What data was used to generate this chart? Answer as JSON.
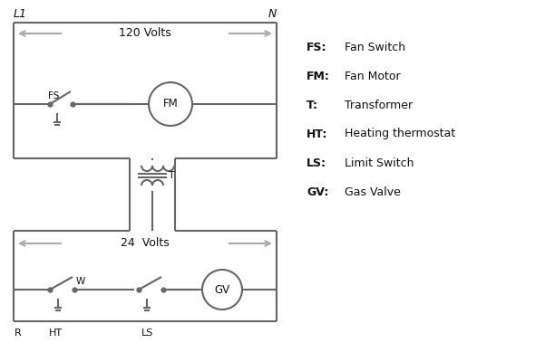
{
  "background_color": "#ffffff",
  "line_color": "#666666",
  "text_color": "#111111",
  "legend_items": [
    [
      "FS:",
      "Fan Switch"
    ],
    [
      "FM:",
      "Fan Motor"
    ],
    [
      "T:",
      "Transformer"
    ],
    [
      "HT:",
      "Heating thermostat"
    ],
    [
      "LS:",
      "Limit Switch"
    ],
    [
      "GV:",
      "Gas Valve"
    ]
  ],
  "volts_120": "120 Volts",
  "volts_24": "24  Volts",
  "L1_label": "L1",
  "N_label": "N",
  "FS_label": "FS",
  "FM_label": "FM",
  "T_label": "T",
  "R_label": "R",
  "W_label": "W",
  "HT_label": "HT",
  "LS_label": "LS",
  "GV_label": "GV"
}
